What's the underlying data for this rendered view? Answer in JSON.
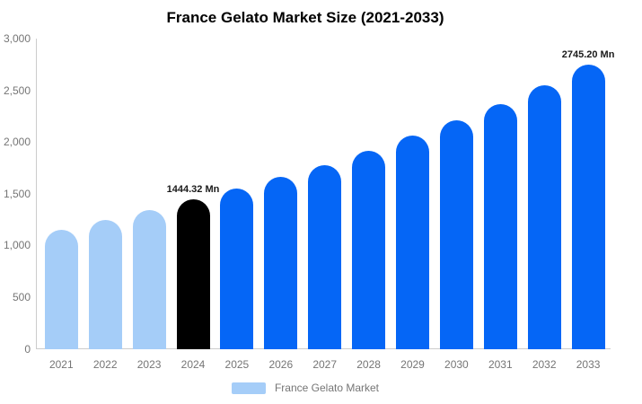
{
  "title": "France Gelato Market Size (2021-2033)",
  "chart_data": {
    "type": "bar",
    "title": "France Gelato Market Size (2021-2033)",
    "categories": [
      "2021",
      "2022",
      "2023",
      "2024",
      "2025",
      "2026",
      "2027",
      "2028",
      "2029",
      "2030",
      "2031",
      "2032",
      "2033"
    ],
    "values": [
      1150,
      1250,
      1340,
      1444.32,
      1550,
      1660,
      1775,
      1915,
      2060,
      2210,
      2370,
      2550,
      2745.2
    ],
    "unit": "Mn",
    "xlabel": "",
    "ylabel": "",
    "ylim": [
      0,
      3000
    ],
    "ytick_step": 500,
    "ytick_labels": [
      "0",
      "500",
      "1,000",
      "1,500",
      "2,000",
      "2,500",
      "3,000"
    ],
    "grid": false,
    "legend_position": "bottom",
    "legend": [
      {
        "label": "France Gelato Market",
        "color": "#A5CDF8"
      }
    ],
    "bar_colors": [
      "#A5CDF8",
      "#A5CDF8",
      "#A5CDF8",
      "#000000",
      "#0566F6",
      "#0566F6",
      "#0566F6",
      "#0566F6",
      "#0566F6",
      "#0566F6",
      "#0566F6",
      "#0566F6",
      "#0566F6"
    ],
    "annotations": [
      {
        "category": "2024",
        "text": "1444.32 Mn"
      },
      {
        "category": "2033",
        "text": "2745.20 Mn"
      }
    ],
    "axis_color": "#cccccc",
    "tick_label_color": "#757575"
  }
}
